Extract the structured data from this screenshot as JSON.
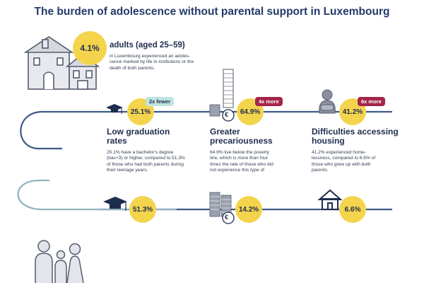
{
  "title": "The burden of adolescence without parental support in Luxembourg",
  "intro": {
    "value": "4.1%",
    "label": "adults (aged 25–59)",
    "desc_lines": [
      "in Luxembourg experienced an adoles-",
      "cence marked by life in institutions or the",
      "death of both parents."
    ]
  },
  "top_row": [
    {
      "value": "25.1%",
      "badge": "2x fewer",
      "heading_lines": [
        "Low graduation",
        "rates"
      ],
      "desc_lines": [
        "25.1% have a bachelor's degree",
        "(bac+3) or higher, compared to 51.3%",
        "of those who had both parents during",
        "their teenage years."
      ]
    },
    {
      "value": "64.9%",
      "badge": "4x more",
      "heading_lines": [
        "Greater",
        "precariousness"
      ],
      "desc_lines": [
        "64.9% live below the poverty",
        "line, which is more than four",
        "times the rate of those who did",
        "not experience this type of"
      ]
    },
    {
      "value": "41.2%",
      "badge": "6x more",
      "heading_lines": [
        "Difficulties accessing",
        "housing"
      ],
      "desc_lines": [
        "41.2% experienced home-",
        "lessness, compared to 6.6% of",
        "those who grew up with both",
        "parents."
      ]
    }
  ],
  "bottom_row": [
    {
      "value": "51.3%"
    },
    {
      "value": "14.2%"
    },
    {
      "value": "6.6%"
    }
  ],
  "coin_symbol": "€",
  "colors": {
    "navy": "#1f2d4d",
    "title": "#243a6b",
    "yellow": "#f4d44d",
    "badge_red": "#a3254a",
    "badge_teal": "#bfe3e0",
    "line_top": "#3d5a87",
    "line_bottom": "#8fb3bf"
  },
  "icons": [
    "house-icon",
    "graduation-cap-icon",
    "coin-stack-icon",
    "person-sitting-icon",
    "house-outline-icon",
    "family-icon"
  ]
}
